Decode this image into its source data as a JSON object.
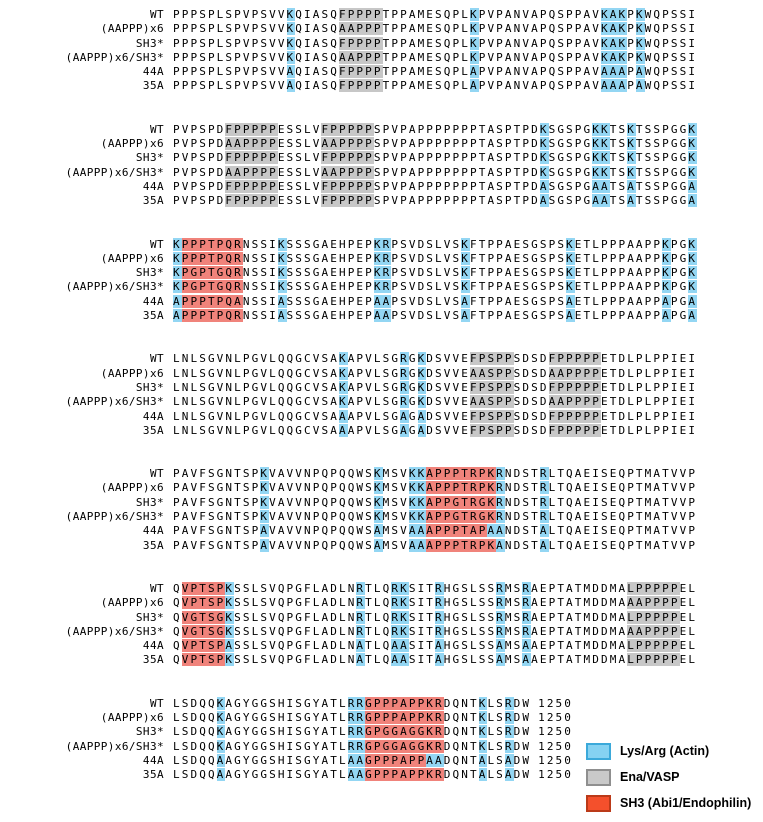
{
  "figure": {
    "highlight_colors": {
      "blue": "#93d6f3",
      "gray": "#c7c7c7",
      "red": "#f0837b"
    },
    "legend": {
      "items": [
        {
          "name": "lys-arg",
          "label": "Lys/Arg (Actin)",
          "fill": "#85d2f2",
          "border": "#3ba9da"
        },
        {
          "name": "ena-vasp",
          "label": "Ena/VASP",
          "fill": "#c9c9c9",
          "border": "#8f8f8f"
        },
        {
          "name": "sh3",
          "label": "SH3 (Abi1/Endophilin)",
          "fill": "#f4502c",
          "border": "#bb3a19"
        }
      ]
    },
    "row_labels": [
      "WT",
      "(AAPPP)x6",
      "SH3*",
      "(AAPPP)x6/SH3*",
      "44A",
      "35A"
    ],
    "last_residue_number": "1250",
    "blocks": [
      {
        "hl": [
          [
            13,
            14,
            "blue"
          ],
          [
            19,
            24,
            "gray"
          ],
          [
            34,
            35,
            "blue"
          ],
          [
            49,
            52,
            "blue"
          ],
          [
            53,
            54,
            "blue"
          ]
        ],
        "rows": [
          {
            "label": "WT",
            "seq": "PPPSPLSPVPSVVKQIASQFPPPPTPPAMESQPLKPVPANVAPQSPPAVKAKPKWQPSSI"
          },
          {
            "label": "(AAPPP)x6",
            "seq": "PPPSPLSPVPSVVKQIASQAAPPPTPPAMESQPLKPVPANVAPQSPPAVKAKPKWQPSSI"
          },
          {
            "label": "SH3*",
            "seq": "PPPSPLSPVPSVVKQIASQFPPPPTPPAMESQPLKPVPANVAPQSPPAVKAKPKWQPSSI"
          },
          {
            "label": "(AAPPP)x6/SH3*",
            "seq": "PPPSPLSPVPSVVKQIASQAAPPPTPPAMESQPLKPVPANVAPQSPPAVKAKPKWQPSSI"
          },
          {
            "label": "44A",
            "seq": "PPPSPLSPVPSVVAQIASQFPPPPTPPAMESQPLAPVPANVAPQSPPAVAAAPAWQPSSI"
          },
          {
            "label": "35A",
            "seq": "PPPSPLSPVPSVVAQIASQFPPPPTPPAMESQPLAPVPANVAPQSPPAVAAAPAWQPSSI"
          }
        ]
      },
      {
        "hl": [
          [
            6,
            12,
            "gray"
          ],
          [
            17,
            23,
            "gray"
          ],
          [
            42,
            43,
            "blue"
          ],
          [
            48,
            50,
            "blue"
          ],
          [
            52,
            53,
            "blue"
          ],
          [
            59,
            60,
            "blue"
          ]
        ],
        "rows": [
          {
            "label": "WT",
            "seq": "PVPSPDFPPPPPESSLVFPPPPPSPVPAPPPPPPPTASPTPDKSGSPGKKTSKTSSPGGK"
          },
          {
            "label": "(AAPPP)x6",
            "seq": "PVPSPDAAPPPPESSLVAAPPPPSPVPAPPPPPPPTASPTPDKSGSPGKKTSKTSSPGGK"
          },
          {
            "label": "SH3*",
            "seq": "PVPSPDFPPPPPESSLVFPPPPPSPVPAPPPPPPPTASPTPDKSGSPGKKTSKTSSPGGK"
          },
          {
            "label": "(AAPPP)x6/SH3*",
            "seq": "PVPSPDAAPPPPESSLVAAPPPPSPVPAPPPPPPPTASPTPDKSGSPGKKTSKTSSPGGK"
          },
          {
            "label": "44A",
            "seq": "PVPSPDFPPPPPESSLVFPPPPPSPVPAPPPPPPPTASPTPDASGSPGAATSATSSPGGA"
          },
          {
            "label": "35A",
            "seq": "PVPSPDFPPPPPESSLVFPPPPPSPVPAPPPPPPPTASPTPDASGSPGAATSATSSPGGA"
          }
        ]
      },
      {
        "hl": [
          [
            0,
            1,
            "blue"
          ],
          [
            1,
            8,
            "red"
          ],
          [
            12,
            13,
            "blue"
          ],
          [
            23,
            25,
            "blue"
          ],
          [
            33,
            34,
            "blue"
          ],
          [
            45,
            46,
            "blue"
          ],
          [
            56,
            57,
            "blue"
          ],
          [
            59,
            60,
            "blue"
          ]
        ],
        "rows": [
          {
            "label": "WT",
            "seq": "KPPPTPQRNSSIKSSSGAEHPEPKRPSVDSLVSKFTPPAESGSPSKETLPPPAAPPKPGK"
          },
          {
            "label": "(AAPPP)x6",
            "seq": "KPPPTPQRNSSIKSSSGAEHPEPKRPSVDSLVSKFTPPAESGSPSKETLPPPAAPPKPGK"
          },
          {
            "label": "SH3*",
            "seq": "KPGPTGQRNSSIKSSSGAEHPEPKRPSVDSLVSKFTPPAESGSPSKETLPPPAAPPKPGK"
          },
          {
            "label": "(AAPPP)x6/SH3*",
            "seq": "KPGPTGQRNSSIKSSSGAEHPEPKRPSVDSLVSKFTPPAESGSPSKETLPPPAAPPKPGK"
          },
          {
            "label": "44A",
            "seq": "APPPTPQANSSIASSSGAEHPEPAAPSVDSLVSAFTPPAESGSPSAETLPPPAAPPAPGA"
          },
          {
            "label": "35A",
            "seq": "APPPTPQRNSSIASSSGAEHPEPAAPSVDSLVSAFTPPAESGSPSAETLPPPAAPPAPGA"
          }
        ]
      },
      {
        "hl": [
          [
            19,
            20,
            "blue"
          ],
          [
            26,
            27,
            "blue"
          ],
          [
            28,
            29,
            "blue"
          ],
          [
            34,
            39,
            "gray"
          ],
          [
            43,
            49,
            "gray"
          ]
        ],
        "rows": [
          {
            "label": "WT",
            "seq": "LNLSGVNLPGVLQQGCVSAKAPVLSGRGKDSVVEFPSPPSDSDFPPPPPETDLPLPPIEI"
          },
          {
            "label": "(AAPPP)x6",
            "seq": "LNLSGVNLPGVLQQGCVSAKAPVLSGRGKDSVVEAASPPSDSDAAPPPPETDLPLPPIEI"
          },
          {
            "label": "SH3*",
            "seq": "LNLSGVNLPGVLQQGCVSAKAPVLSGRGKDSVVEFPSPPSDSDFPPPPPETDLPLPPIEI"
          },
          {
            "label": "(AAPPP)x6/SH3*",
            "seq": "LNLSGVNLPGVLQQGCVSAKAPVLSGRGKDSVVEAASPPSDSDAAPPPPETDLPLPPIEI"
          },
          {
            "label": "44A",
            "seq": "LNLSGVNLPGVLQQGCVSAAAPVLSGAGADSVVEFPSPPSDSDFPPPPPETDLPLPPIEI"
          },
          {
            "label": "35A",
            "seq": "LNLSGVNLPGVLQQGCVSAAAPVLSGAGADSVVEFPSPPSDSDFPPPPPETDLPLPPIEI"
          }
        ]
      },
      {
        "hl": [
          [
            10,
            11,
            "blue"
          ],
          [
            23,
            24,
            "blue"
          ],
          [
            27,
            29,
            "blue"
          ],
          [
            29,
            37,
            "red"
          ],
          [
            37,
            38,
            "blue"
          ],
          [
            42,
            43,
            "blue"
          ]
        ],
        "rows": [
          {
            "label": "WT",
            "seq": "PAVFSGNTSPKVAVVNPQPQQWSKMSVKKAPPPTRPKRNDSTRLTQAEISEQPTMATVVP"
          },
          {
            "label": "(AAPPP)x6",
            "seq": "PAVFSGNTSPKVAVVNPQPQQWSKMSVKKAPPPTRPKRNDSTRLTQAEISEQPTMATVVP"
          },
          {
            "label": "SH3*",
            "seq": "PAVFSGNTSPKVAVVNPQPQQWSKMSVKKAPPGTRGKRNDSTRLTQAEISEQPTMATVVP"
          },
          {
            "label": "(AAPPP)x6/SH3*",
            "seq": "PAVFSGNTSPKVAVVNPQPQQWSKMSVKKAPPGTRGKRNDSTRLTQAEISEQPTMATVVP"
          },
          {
            "label": "44A",
            "seq": "PAVFSGNTSPAVAVVNPQPQQWSAMSVAAAPPPTAPAANDSTALTQAEISEQPTMATVVP",
            "hl": [
              [
                10,
                11,
                "blue"
              ],
              [
                23,
                24,
                "blue"
              ],
              [
                27,
                29,
                "blue"
              ],
              [
                29,
                36,
                "red"
              ],
              [
                36,
                38,
                "blue"
              ],
              [
                42,
                43,
                "blue"
              ]
            ]
          },
          {
            "label": "35A",
            "seq": "PAVFSGNTSPAVAVVNPQPQQWSAMSVAAAPPPTRPKANDSTALTQAEISEQPTMATVVP"
          }
        ]
      },
      {
        "hl": [
          [
            1,
            6,
            "red"
          ],
          [
            6,
            7,
            "blue"
          ],
          [
            21,
            22,
            "blue"
          ],
          [
            25,
            27,
            "blue"
          ],
          [
            30,
            31,
            "blue"
          ],
          [
            37,
            38,
            "blue"
          ],
          [
            40,
            41,
            "blue"
          ],
          [
            52,
            58,
            "gray"
          ]
        ],
        "rows": [
          {
            "label": "WT",
            "seq": "QVPTSPKSSLSVQPGFLADLNRTLQRKSITRHGSLSSRMSRAEPTATMDDMALPPPPPEL"
          },
          {
            "label": "(AAPPP)x6",
            "seq": "QVPTSPKSSLSVQPGFLADLNRTLQRKSITRHGSLSSRMSRAEPTATMDDMAAAPPPPEL"
          },
          {
            "label": "SH3*",
            "seq": "QVGTSGKSSLSVQPGFLADLNRTLQRKSITRHGSLSSRMSRAEPTATMDDMALPPPPPEL"
          },
          {
            "label": "(AAPPP)x6/SH3*",
            "seq": "QVGTSGKSSLSVQPGFLADLNRTLQRKSITRHGSLSSRMSRAEPTATMDDMAAAPPPPEL"
          },
          {
            "label": "44A",
            "seq": "QVPTSPASSLSVQPGFLADLNATLQAASITAHGSLSSAMSAAEPTATMDDMALPPPPPEL"
          },
          {
            "label": "35A",
            "seq": "QVPTSPKSSLSVQPGFLADLNATLQAASITAHGSLSSAMSAAEPTATMDDMALPPPPPEL"
          }
        ]
      },
      {
        "hl": [
          [
            5,
            6,
            "blue"
          ],
          [
            20,
            22,
            "blue"
          ],
          [
            22,
            31,
            "red"
          ],
          [
            35,
            36,
            "blue"
          ],
          [
            38,
            39,
            "blue"
          ]
        ],
        "rows": [
          {
            "label": "WT",
            "seq": "LSDQQKAGYGGSHISGYATLRRGPPPAPPKRDQNTKLSRDW",
            "num": "1250"
          },
          {
            "label": "(AAPPP)x6",
            "seq": "LSDQQKAGYGGSHISGYATLRRGPPPAPPKRDQNTKLSRDW",
            "num": "1250"
          },
          {
            "label": "SH3*",
            "seq": "LSDQQKAGYGGSHISGYATLRRGPGGAGGKRDQNTKLSRDW",
            "num": "1250"
          },
          {
            "label": "(AAPPP)x6/SH3*",
            "seq": "LSDQQKAGYGGSHISGYATLRRGPGGAGGKRDQNTKLSRDW",
            "num": "1250"
          },
          {
            "label": "44A",
            "seq": "LSDQQAAGYGGSHISGYATLAAGPPPAPPAADQNTALSADW",
            "num": "1250",
            "hl": [
              [
                5,
                6,
                "blue"
              ],
              [
                20,
                22,
                "blue"
              ],
              [
                22,
                29,
                "red"
              ],
              [
                29,
                31,
                "blue"
              ],
              [
                35,
                36,
                "blue"
              ],
              [
                38,
                39,
                "blue"
              ]
            ]
          },
          {
            "label": "35A",
            "seq": "LSDQQAAGYGGSHISGYATLAAGPPPAPPKRDQNTALSADW",
            "num": "1250"
          }
        ]
      }
    ]
  }
}
